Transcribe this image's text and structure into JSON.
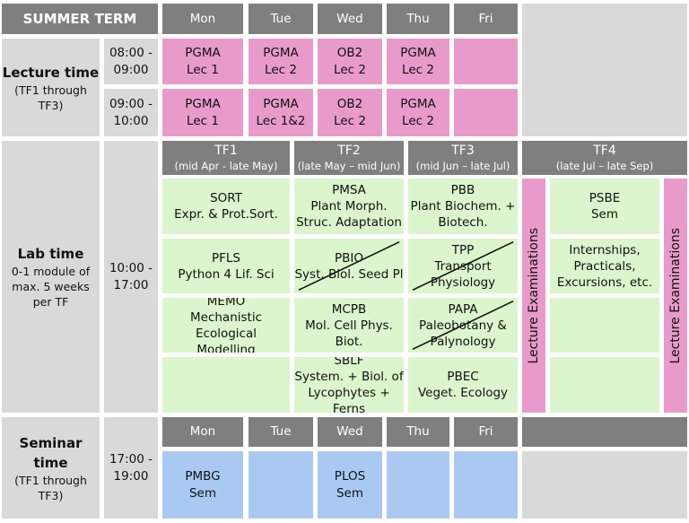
{
  "header": {
    "title": "SUMMER TERM",
    "days": [
      "Mon",
      "Tue",
      "Wed",
      "Thu",
      "Fri"
    ]
  },
  "lecture": {
    "label": "Lecture time",
    "sublabel": "(TF1 through TF3)",
    "slots": [
      {
        "time": [
          "08:00 -",
          "09:00"
        ],
        "cells": [
          {
            "lines": [
              "PGMA",
              "Lec 1"
            ]
          },
          {
            "lines": [
              "PGMA",
              "Lec 2"
            ]
          },
          {
            "lines": [
              "OB2",
              "Lec 2"
            ]
          },
          {
            "lines": [
              "PGMA",
              "Lec 2"
            ]
          },
          {
            "lines": []
          }
        ]
      },
      {
        "time": [
          "09:00 -",
          "10:00"
        ],
        "cells": [
          {
            "lines": [
              "PGMA",
              "Lec 1"
            ]
          },
          {
            "lines": [
              "PGMA",
              "Lec 1&2"
            ]
          },
          {
            "lines": [
              "OB2",
              "Lec 2"
            ]
          },
          {
            "lines": [
              "PGMA",
              "Lec 2"
            ]
          },
          {
            "lines": []
          }
        ]
      }
    ]
  },
  "lab": {
    "label": "Lab time",
    "sublabel": "0-1 module of max. 5 weeks per TF",
    "time": [
      "10:00 -",
      "17:00"
    ],
    "exam": "Lecture Examinations",
    "terms": [
      {
        "name": "TF1",
        "period": "(mid Apr - late May)",
        "modules": [
          {
            "lines": [
              "SORT",
              "Expr. & Prot.Sort."
            ]
          },
          {
            "lines": [
              "PFLS",
              "Python 4 Lif. Sci"
            ]
          },
          {
            "lines": [
              "MEMO",
              "Mechanistic Ecological",
              "Modelling"
            ]
          },
          {
            "lines": []
          }
        ]
      },
      {
        "name": "TF2",
        "period": "(late May – mid Jun)",
        "modules": [
          {
            "lines": [
              "PMSA",
              "Plant Morph.",
              "Struc. Adaptation"
            ]
          },
          {
            "lines": [
              "PBIO",
              "Syst. Biol. Seed Pl"
            ],
            "crossed": true
          },
          {
            "lines": [
              "MCPB",
              "Mol. Cell Phys.",
              "Biot."
            ]
          },
          {
            "lines": [
              "SBLF",
              "System. + Biol. of",
              "Lycophytes + Ferns"
            ]
          }
        ]
      },
      {
        "name": "TF3",
        "period": "(mid Jun – late Jul)",
        "modules": [
          {
            "lines": [
              "PBB",
              "Plant Biochem. +",
              "Biotech."
            ]
          },
          {
            "lines": [
              "TPP",
              "Transport",
              "Physiology"
            ],
            "crossed": true
          },
          {
            "lines": [
              "PAPA",
              "Paleobotany &",
              "Palynology"
            ],
            "crossed": true
          },
          {
            "lines": [
              "PBEC",
              "Veget. Ecology"
            ]
          }
        ]
      },
      {
        "name": "TF4",
        "period": "(late Jul – late Sep)",
        "modules": [
          {
            "lines": [
              "PSBE",
              "Sem"
            ]
          },
          {
            "lines": [
              "Internships,",
              "Practicals,",
              "Excursions, etc."
            ]
          },
          {
            "lines": []
          },
          {
            "lines": []
          }
        ]
      }
    ]
  },
  "seminar": {
    "label": "Seminar time",
    "sublabel": "(TF1 through TF3)",
    "time": [
      "17:00 -",
      "19:00"
    ],
    "cells": [
      {
        "lines": [
          "PMBG",
          "Sem"
        ]
      },
      {
        "lines": []
      },
      {
        "lines": [
          "PLOS",
          "Sem"
        ]
      },
      {
        "lines": []
      },
      {
        "lines": []
      }
    ]
  }
}
